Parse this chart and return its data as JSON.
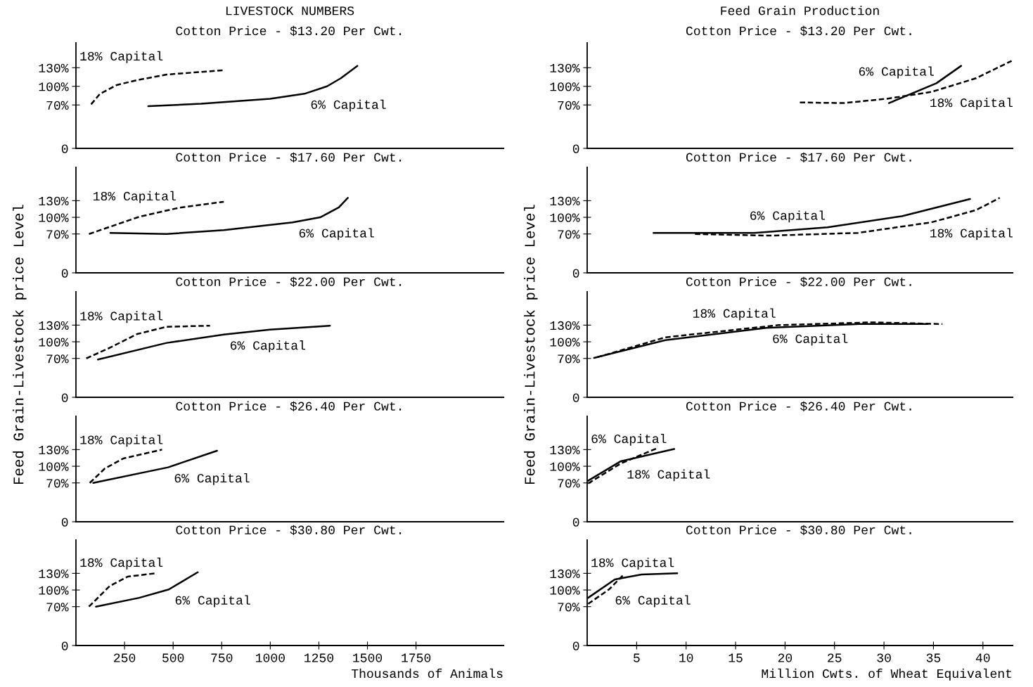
{
  "chart_data": [
    {
      "type": "line",
      "title": "LIVESTOCK NUMBERS",
      "subtitle": "Cotton Price - $13.20 Per Cwt.",
      "xlim": [
        0,
        2200
      ],
      "ylim": [
        0,
        170
      ],
      "yticks": [
        0,
        {
          "value": 70,
          "label": "70%"
        },
        {
          "value": 100,
          "label": "100%"
        },
        {
          "value": 130,
          "label": "130%"
        }
      ],
      "tick_labels": "y",
      "marker": "none",
      "series": [
        {
          "name": "6% Capital",
          "color": "#000000",
          "line_style": "solid",
          "x": [
            372,
            644,
            999,
            1176,
            1292,
            1363,
            1448
          ],
          "values": [
            68,
            72,
            80,
            88,
            100,
            113,
            133
          ]
        },
        {
          "name": "18% Capital",
          "color": "#000000",
          "line_style": "dashed",
          "x": [
            78,
            124,
            209,
            315,
            467,
            761
          ],
          "values": [
            71,
            88,
            102,
            110,
            119,
            126
          ]
        }
      ]
    },
    {
      "type": "line",
      "title": "Feed Grain Production",
      "subtitle": "Cotton Price - $13.20 Per Cwt.",
      "xlim": [
        0,
        43
      ],
      "ylim": [
        0,
        170
      ],
      "yticks": [
        0,
        {
          "value": 70,
          "label": "70%"
        },
        {
          "value": 100,
          "label": "100%"
        },
        {
          "value": 130,
          "label": "130%"
        }
      ],
      "tick_labels": "y",
      "marker": "none",
      "series": [
        {
          "name": "6% Capital",
          "color": "#000000",
          "line_style": "solid",
          "x": [
            30.5,
            35.3,
            37.8
          ],
          "values": [
            73,
            105,
            133
          ]
        },
        {
          "name": "18% Capital",
          "color": "#000000",
          "line_style": "dashed",
          "x": [
            21.5,
            25.9,
            30.3,
            34.8,
            39.3,
            42.9
          ],
          "values": [
            74,
            73,
            80,
            91,
            113,
            141
          ]
        }
      ]
    },
    {
      "type": "line",
      "title": "Cotton Price - $17.60 Per Cwt.",
      "xlim": [
        0,
        2200
      ],
      "ylim": [
        0,
        190
      ],
      "yticks": [
        0,
        {
          "value": 70,
          "label": "70%"
        },
        {
          "value": 100,
          "label": "100%"
        },
        {
          "value": 130,
          "label": "130%"
        }
      ],
      "tick_labels": "y",
      "marker": "none",
      "series": [
        {
          "name": "6% Capital",
          "color": "#000000",
          "line_style": "solid",
          "x": [
            177,
            467,
            761,
            1115,
            1257,
            1353,
            1399
          ],
          "values": [
            72,
            70,
            77,
            91,
            100,
            118,
            135
          ]
        },
        {
          "name": "18% Capital",
          "color": "#000000",
          "line_style": "dashed",
          "x": [
            67,
            326,
            527,
            761
          ],
          "values": [
            70,
            101,
            117,
            128
          ]
        }
      ]
    },
    {
      "type": "line",
      "title": "Cotton Price - $17.60 Per Cwt.",
      "xlim": [
        0,
        43
      ],
      "ylim": [
        0,
        190
      ],
      "yticks": [
        0,
        {
          "value": 70,
          "label": "70%"
        },
        {
          "value": 100,
          "label": "100%"
        },
        {
          "value": 130,
          "label": "130%"
        }
      ],
      "tick_labels": "y",
      "marker": "none",
      "series": [
        {
          "name": "6% Capital",
          "color": "#000000",
          "line_style": "solid",
          "x": [
            6.7,
            16.9,
            24.3,
            31.8,
            38.7
          ],
          "values": [
            72,
            72,
            82,
            102,
            133
          ]
        },
        {
          "name": "18% Capital",
          "color": "#000000",
          "line_style": "dashed",
          "x": [
            10.9,
            18.4,
            27.4,
            34.8,
            39.3,
            41.7
          ],
          "values": [
            70,
            67,
            72,
            91,
            113,
            135
          ]
        }
      ]
    },
    {
      "type": "line",
      "title": "Cotton Price - $22.00 Per Cwt.",
      "ylabel": "Feed Grain-Livestock price Level",
      "xlim": [
        0,
        2200
      ],
      "ylim": [
        0,
        190
      ],
      "yticks": [
        0,
        {
          "value": 70,
          "label": "70%"
        },
        {
          "value": 100,
          "label": "100%"
        },
        {
          "value": 130,
          "label": "130%"
        }
      ],
      "tick_labels": "y",
      "marker": "none",
      "series": [
        {
          "name": "6% Capital",
          "color": "#000000",
          "line_style": "solid",
          "x": [
            113,
            467,
            761,
            999,
            1307
          ],
          "values": [
            68,
            98,
            113,
            122,
            129
          ]
        },
        {
          "name": "18% Capital",
          "color": "#000000",
          "line_style": "dashed",
          "x": [
            53,
            173,
            315,
            467,
            690
          ],
          "values": [
            70,
            89,
            114,
            127,
            129
          ]
        }
      ]
    },
    {
      "type": "line",
      "title": "Cotton Price - $22.00 Per Cwt.",
      "ylabel": "Feed Grain-Livestock price Level",
      "xlim": [
        0,
        43
      ],
      "ylim": [
        0,
        190
      ],
      "yticks": [
        0,
        {
          "value": 70,
          "label": "70%"
        },
        {
          "value": 100,
          "label": "100%"
        },
        {
          "value": 130,
          "label": "130%"
        }
      ],
      "tick_labels": "y",
      "marker": "none",
      "series": [
        {
          "name": "6% Capital",
          "color": "#000000",
          "line_style": "solid",
          "x": [
            0.7,
            7.9,
            18.1,
            27.6,
            34.4
          ],
          "values": [
            71,
            103,
            125,
            132,
            132
          ]
        },
        {
          "name": "18% Capital",
          "color": "#000000",
          "line_style": "dashed",
          "x": [
            1.0,
            7.9,
            19.3,
            28.8,
            35.9
          ],
          "values": [
            72,
            108,
            130,
            135,
            132
          ]
        }
      ]
    },
    {
      "type": "line",
      "title": "Cotton Price - $26.40 Per Cwt.",
      "xlim": [
        0,
        2200
      ],
      "ylim": [
        0,
        190
      ],
      "yticks": [
        0,
        {
          "value": 70,
          "label": "70%"
        },
        {
          "value": 100,
          "label": "100%"
        },
        {
          "value": 130,
          "label": "130%"
        }
      ],
      "tick_labels": "y",
      "marker": "none",
      "series": [
        {
          "name": "6% Capital",
          "color": "#000000",
          "line_style": "solid",
          "x": [
            89,
            474,
            726
          ],
          "values": [
            70,
            98,
            128
          ]
        },
        {
          "name": "18% Capital",
          "color": "#000000",
          "line_style": "dashed",
          "x": [
            71,
            149,
            244,
            443
          ],
          "values": [
            70,
            96,
            114,
            130
          ]
        }
      ]
    },
    {
      "type": "line",
      "title": "Cotton Price - $26.40 Per Cwt.",
      "xlim": [
        0,
        43
      ],
      "ylim": [
        0,
        190
      ],
      "yticks": [
        0,
        {
          "value": 70,
          "label": "70%"
        },
        {
          "value": 100,
          "label": "100%"
        },
        {
          "value": 130,
          "label": "130%"
        }
      ],
      "tick_labels": "y",
      "marker": "none",
      "series": [
        {
          "name": "6% Capital",
          "color": "#000000",
          "line_style": "solid",
          "x": [
            0.1,
            3.4,
            8.8
          ],
          "values": [
            74,
            109,
            131
          ]
        },
        {
          "name": "18% Capital",
          "color": "#000000",
          "line_style": "dashed",
          "x": [
            0.1,
            3.4,
            7.0
          ],
          "values": [
            69,
            105,
            132
          ]
        }
      ]
    },
    {
      "type": "line",
      "title": "Cotton Price - $30.80 Per Cwt.",
      "xlabel": "Thousands of Animals",
      "xlim": [
        0,
        2200
      ],
      "xticks": [
        250,
        500,
        750,
        1000,
        1250,
        1500,
        1750
      ],
      "ylim": [
        0,
        190
      ],
      "yticks": [
        0,
        {
          "value": 70,
          "label": "70%"
        },
        {
          "value": 100,
          "label": "100%"
        },
        {
          "value": 130,
          "label": "130%"
        }
      ],
      "marker": "none",
      "series": [
        {
          "name": "6% Capital",
          "color": "#000000",
          "line_style": "solid",
          "x": [
            103,
            326,
            478,
            627
          ],
          "values": [
            70,
            86,
            101,
            132
          ]
        },
        {
          "name": "18% Capital",
          "color": "#000000",
          "line_style": "dashed",
          "x": [
            67,
            173,
            266,
            407
          ],
          "values": [
            70,
            107,
            124,
            130
          ]
        }
      ]
    },
    {
      "type": "line",
      "title": "Cotton Price - $30.80 Per Cwt.",
      "xlabel": "Million Cwts. of Wheat Equivalent",
      "xlim": [
        0,
        43
      ],
      "xticks": [
        5,
        10,
        15,
        20,
        25,
        30,
        35,
        40
      ],
      "ylim": [
        0,
        190
      ],
      "yticks": [
        0,
        {
          "value": 70,
          "label": "70%"
        },
        {
          "value": 100,
          "label": "100%"
        },
        {
          "value": 130,
          "label": "130%"
        }
      ],
      "marker": "none",
      "series": [
        {
          "name": "6% Capital",
          "color": "#000000",
          "line_style": "dashed",
          "x": [
            0.1,
            2.2,
            3.7
          ],
          "values": [
            75,
            101,
            128
          ]
        },
        {
          "name": "18% Capital",
          "color": "#000000",
          "line_style": "solid",
          "x": [
            0.1,
            2.8,
            5.5,
            9.1
          ],
          "values": [
            86,
            119,
            128,
            130
          ]
        }
      ]
    }
  ]
}
